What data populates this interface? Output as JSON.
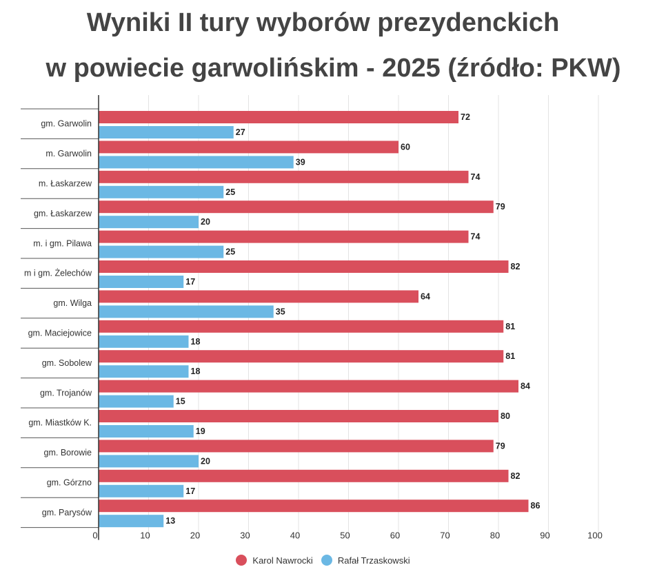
{
  "chart_data": {
    "type": "bar",
    "orientation": "horizontal",
    "title_line1": "Wyniki II tury wyborów prezydenckich",
    "title_line2": "w powiecie garwolińskim - 2025 (źródło: PKW)",
    "categories": [
      "gm. Garwolin",
      "m. Garwolin",
      "m. Łaskarzew",
      "gm. Łaskarzew",
      "m. i gm. Pilawa",
      "m i gm. Żelechów",
      "gm. Wilga",
      "gm. Maciejowice",
      "gm. Sobolew",
      "gm. Trojanów",
      "gm. Miastków K.",
      "gm. Borowie",
      "gm. Górzno",
      "gm. Parysów"
    ],
    "series": [
      {
        "name": "Karol Nawrocki",
        "color": "#d94f5c",
        "values": [
          72,
          60,
          74,
          79,
          74,
          82,
          64,
          81,
          81,
          84,
          80,
          79,
          82,
          86
        ]
      },
      {
        "name": "Rafał Trzaskowski",
        "color": "#6bb8e4",
        "values": [
          27,
          39,
          25,
          20,
          25,
          17,
          35,
          18,
          18,
          15,
          19,
          20,
          17,
          13
        ]
      }
    ],
    "xlim": [
      0,
      100
    ],
    "xticks": [
      "0",
      "10",
      "20",
      "30",
      "40",
      "50",
      "60",
      "70",
      "80",
      "90",
      "100"
    ],
    "grid": true,
    "legend_position": "bottom",
    "data_labels": true
  }
}
